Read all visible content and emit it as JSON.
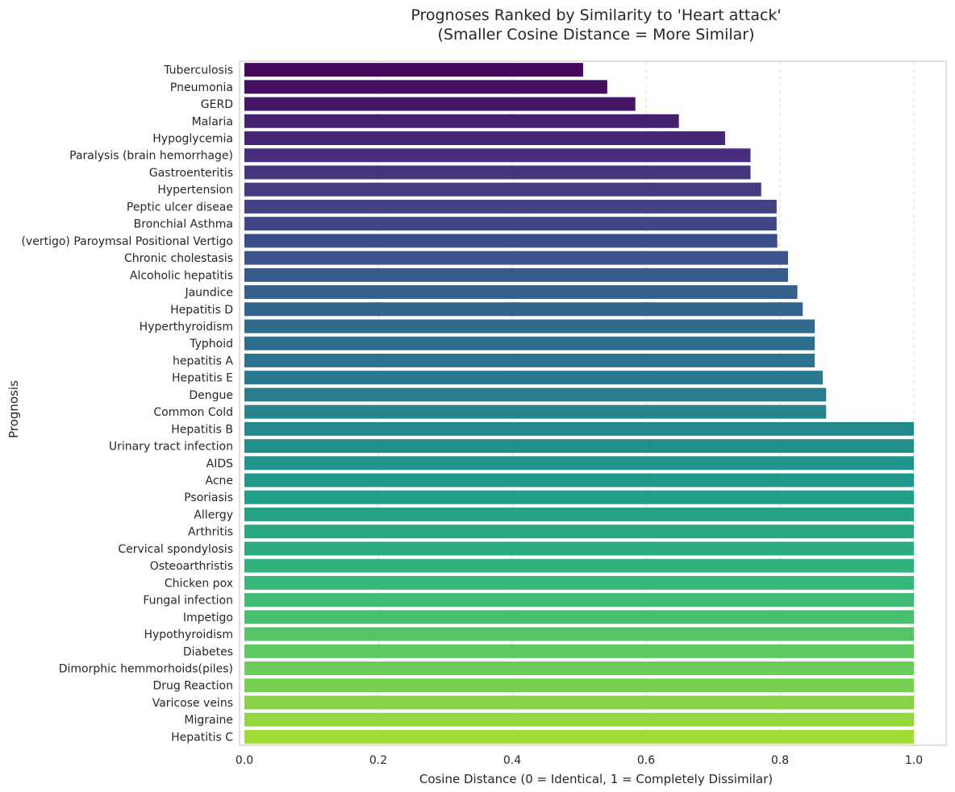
{
  "chart_data": {
    "type": "bar",
    "orientation": "horizontal",
    "title_line1": "Prognoses Ranked by Similarity to 'Heart attack'",
    "title_line2": "(Smaller Cosine Distance = More Similar)",
    "xlabel": "Cosine Distance (0 = Identical, 1 = Completely Dissimilar)",
    "ylabel": "Prognosis",
    "xlim": [
      0,
      1.05
    ],
    "x_ticks": [
      "0.0",
      "0.2",
      "0.4",
      "0.6",
      "0.8",
      "1.0"
    ],
    "grid": "x, dashed",
    "colormap": "viridis",
    "categories": [
      "Tuberculosis",
      "Pneumonia",
      "GERD",
      "Malaria",
      "Hypoglycemia",
      "Paralysis (brain hemorrhage)",
      "Gastroenteritis",
      "Hypertension ",
      "Peptic ulcer diseae",
      "Bronchial Asthma",
      "(vertigo) Paroymsal  Positional Vertigo",
      "Chronic cholestasis",
      "Alcoholic hepatitis",
      "Jaundice",
      "Hepatitis D",
      "Hyperthyroidism",
      "Typhoid",
      "hepatitis A",
      "Hepatitis E",
      "Dengue",
      "Common Cold",
      "Hepatitis B",
      "Urinary tract infection",
      "AIDS",
      "Acne",
      "Psoriasis",
      "Allergy",
      "Arthritis",
      "Cervical spondylosis",
      "Osteoarthristis",
      "Chicken pox",
      "Fungal infection",
      "Impetigo",
      "Hypothyroidism",
      "Diabetes ",
      "Dimorphic hemmorhoids(piles)",
      "Drug Reaction",
      "Varicose veins",
      "Migraine",
      "Hepatitis C"
    ],
    "values": [
      0.506,
      0.542,
      0.584,
      0.649,
      0.718,
      0.756,
      0.756,
      0.772,
      0.795,
      0.795,
      0.796,
      0.812,
      0.812,
      0.826,
      0.834,
      0.852,
      0.852,
      0.852,
      0.864,
      0.869,
      0.869,
      1.0,
      1.0,
      1.0,
      1.0,
      1.0,
      1.0,
      1.0,
      1.0,
      1.0,
      1.0,
      1.0,
      1.0,
      1.0,
      1.0,
      1.0,
      1.0,
      1.0,
      1.0,
      1.0
    ]
  }
}
